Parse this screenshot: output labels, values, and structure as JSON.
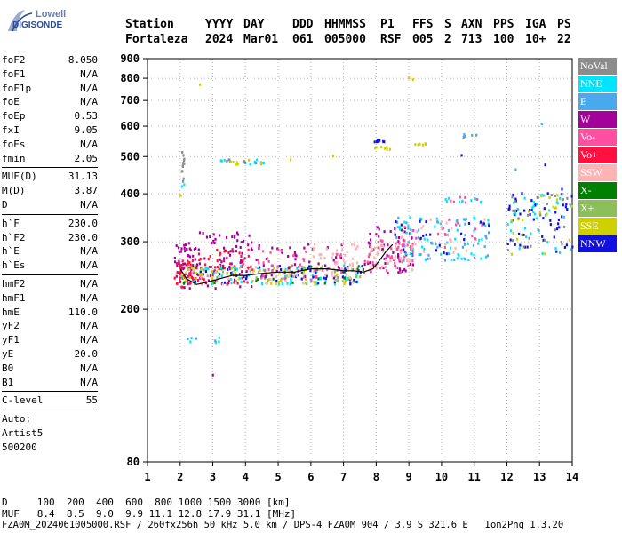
{
  "logo": {
    "line1": "Lowell",
    "line2": "DIGISONDE"
  },
  "header": {
    "columns": [
      {
        "name": "Station",
        "value": "Fortaleza"
      },
      {
        "name": "YYYY",
        "value": "2024"
      },
      {
        "name": "DAY",
        "value": "Mar01"
      },
      {
        "name": "DDD",
        "value": "061"
      },
      {
        "name": "HHMMSS",
        "value": "005000"
      },
      {
        "name": "P1",
        "value": "RSF"
      },
      {
        "name": "FFS",
        "value": "005"
      },
      {
        "name": "S",
        "value": "2"
      },
      {
        "name": "AXN",
        "value": "713"
      },
      {
        "name": "PPS",
        "value": "100"
      },
      {
        "name": "IGA",
        "value": "10+"
      },
      {
        "name": "PS",
        "value": "22"
      }
    ]
  },
  "params": {
    "group1": [
      {
        "name": "foF2",
        "value": "8.050"
      },
      {
        "name": "foF1",
        "value": "N/A"
      },
      {
        "name": "foF1p",
        "value": "N/A"
      },
      {
        "name": "foE",
        "value": "N/A"
      },
      {
        "name": "foEp",
        "value": "0.53"
      },
      {
        "name": "fxI",
        "value": "9.05"
      },
      {
        "name": "foEs",
        "value": "N/A"
      },
      {
        "name": "fmin",
        "value": "2.05"
      }
    ],
    "group2": [
      {
        "name": "MUF(D)",
        "value": "31.13"
      },
      {
        "name": "M(D)",
        "value": "3.87"
      },
      {
        "name": "D",
        "value": "N/A"
      }
    ],
    "group3": [
      {
        "name": "h`F",
        "value": "230.0"
      },
      {
        "name": "h`F2",
        "value": "230.0"
      },
      {
        "name": "h`E",
        "value": "N/A"
      },
      {
        "name": "h`Es",
        "value": "N/A"
      }
    ],
    "group4": [
      {
        "name": "hmF2",
        "value": "N/A"
      },
      {
        "name": "hmF1",
        "value": "N/A"
      },
      {
        "name": "hmE",
        "value": "110.0"
      },
      {
        "name": "yF2",
        "value": "N/A"
      },
      {
        "name": "yF1",
        "value": "N/A"
      },
      {
        "name": "yE",
        "value": "20.0"
      },
      {
        "name": "B0",
        "value": "N/A"
      },
      {
        "name": "B1",
        "value": "N/A"
      }
    ],
    "clevel": {
      "name": "C-level",
      "value": "55"
    },
    "auto": {
      "line1": "Auto:",
      "line2": "Artist5",
      "line3": "500200"
    }
  },
  "legend": [
    {
      "label": "NoVal",
      "color": "#8c8c8c"
    },
    {
      "label": "NNE",
      "color": "#00e5ff"
    },
    {
      "label": "E",
      "color": "#4aa8ee"
    },
    {
      "label": "W",
      "color": "#a4009a"
    },
    {
      "label": "Vo-",
      "color": "#ff4fa0"
    },
    {
      "label": "Vo+",
      "color": "#ff1040"
    },
    {
      "label": "SSW",
      "color": "#ffb4b4"
    },
    {
      "label": "X-",
      "color": "#008000"
    },
    {
      "label": "X+",
      "color": "#8cbf5a"
    },
    {
      "label": "SSE",
      "color": "#d0d000"
    },
    {
      "label": "NNW",
      "color": "#1010e0"
    }
  ],
  "bottom": {
    "line1": "D     100  200  400  600  800 1000 1500 3000 [km]",
    "line2": "MUF   8.4  8.5  9.0  9.9 11.1 12.8 17.9 31.1 [MHz]",
    "line3": "FZA0M_2024061005000.RSF / 260fx256h 50 kHz 5.0 km / DPS-4 FZA0M 904 / 3.9 S 321.6 E   Ion2Png 1.3.20"
  },
  "chart_data": {
    "type": "scatter",
    "xlim": [
      1,
      14
    ],
    "ylim": [
      80,
      900
    ],
    "y_scale": "log",
    "x_ticks": [
      1,
      2,
      3,
      4,
      5,
      6,
      7,
      8,
      9,
      10,
      11,
      12,
      13,
      14
    ],
    "y_ticks": [
      80,
      200,
      300,
      400,
      500,
      600,
      700,
      800,
      900
    ],
    "grid": true,
    "trace": {
      "x": [
        2.0,
        2.2,
        2.5,
        2.8,
        3.2,
        3.6,
        4.0,
        4.5,
        5.0,
        5.5,
        6.0,
        6.5,
        7.0,
        7.3,
        7.6,
        7.9,
        8.1,
        8.3,
        8.5
      ],
      "y": [
        255,
        240,
        232,
        235,
        240,
        245,
        245,
        248,
        250,
        250,
        255,
        255,
        252,
        252,
        250,
        255,
        268,
        283,
        295
      ]
    },
    "clusters": [
      {
        "x": [
          1.8,
          2.5
        ],
        "y": [
          228,
          300
        ],
        "color": "#a4009a",
        "n": 55
      },
      {
        "x": [
          1.8,
          2.5
        ],
        "y": [
          230,
          270
        ],
        "color": "#ff1040",
        "n": 40
      },
      {
        "x": [
          2.5,
          4.2
        ],
        "y": [
          228,
          320
        ],
        "color": "#a4009a",
        "n": 70
      },
      {
        "x": [
          2.5,
          4.2
        ],
        "y": [
          232,
          290
        ],
        "color": "#ff1040",
        "n": 55
      },
      {
        "x": [
          2.0,
          7.6
        ],
        "y": [
          234,
          262
        ],
        "color": "#00e5ff",
        "n": 70
      },
      {
        "x": [
          2.0,
          7.6
        ],
        "y": [
          234,
          262
        ],
        "color": "#1010e0",
        "n": 55
      },
      {
        "x": [
          2.0,
          7.6
        ],
        "y": [
          234,
          262
        ],
        "color": "#d0d000",
        "n": 55
      },
      {
        "x": [
          2.0,
          7.6
        ],
        "y": [
          234,
          262
        ],
        "color": "#8cbf5a",
        "n": 40
      },
      {
        "x": [
          2.0,
          7.6
        ],
        "y": [
          234,
          262
        ],
        "color": "#008000",
        "n": 25
      },
      {
        "x": [
          2.0,
          7.6
        ],
        "y": [
          234,
          262
        ],
        "color": "#ffb4b4",
        "n": 45
      },
      {
        "x": [
          4.3,
          7.0
        ],
        "y": [
          240,
          300
        ],
        "color": "#a4009a",
        "n": 45
      },
      {
        "x": [
          4.3,
          7.0
        ],
        "y": [
          240,
          290
        ],
        "color": "#ff4fa0",
        "n": 40
      },
      {
        "x": [
          6.0,
          7.5
        ],
        "y": [
          255,
          300
        ],
        "color": "#ffb4b4",
        "n": 40
      },
      {
        "x": [
          7.6,
          9.1
        ],
        "y": [
          250,
          330
        ],
        "color": "#a4009a",
        "n": 60
      },
      {
        "x": [
          7.6,
          9.1
        ],
        "y": [
          250,
          310
        ],
        "color": "#ff4fa0",
        "n": 45
      },
      {
        "x": [
          7.6,
          9.1
        ],
        "y": [
          255,
          300
        ],
        "color": "#ffb4b4",
        "n": 35
      },
      {
        "x": [
          8.5,
          11.5
        ],
        "y": [
          270,
          350
        ],
        "color": "#00e5ff",
        "n": 55
      },
      {
        "x": [
          8.5,
          11.5
        ],
        "y": [
          270,
          350
        ],
        "color": "#4aa8ee",
        "n": 45
      },
      {
        "x": [
          8.5,
          11.5
        ],
        "y": [
          270,
          350
        ],
        "color": "#ffb4b4",
        "n": 30
      },
      {
        "x": [
          8.5,
          11.5
        ],
        "y": [
          270,
          350
        ],
        "color": "#ff4fa0",
        "n": 20
      },
      {
        "x": [
          8.5,
          11.5
        ],
        "y": [
          280,
          350
        ],
        "color": "#1010e0",
        "n": 20
      },
      {
        "x": [
          10.0,
          11.2
        ],
        "y": [
          380,
          395
        ],
        "color": "#00e5ff",
        "n": 10
      },
      {
        "x": [
          10.0,
          11.2
        ],
        "y": [
          380,
          395
        ],
        "color": "#ff4fa0",
        "n": 6
      },
      {
        "x": [
          12.0,
          14.0
        ],
        "y": [
          280,
          420
        ],
        "color": "#1010e0",
        "n": 55
      },
      {
        "x": [
          12.0,
          14.0
        ],
        "y": [
          280,
          400
        ],
        "color": "#00e5ff",
        "n": 35
      },
      {
        "x": [
          12.0,
          14.0
        ],
        "y": [
          280,
          400
        ],
        "color": "#d0d000",
        "n": 20
      },
      {
        "x": [
          12.0,
          14.0
        ],
        "y": [
          280,
          400
        ],
        "color": "#8c8c8c",
        "n": 25
      },
      {
        "x": [
          3.2,
          4.6
        ],
        "y": [
          480,
          495
        ],
        "color": "#00e5ff",
        "n": 12
      },
      {
        "x": [
          3.2,
          4.6
        ],
        "y": [
          480,
          495
        ],
        "color": "#8c8c8c",
        "n": 6
      },
      {
        "x": [
          3.2,
          4.6
        ],
        "y": [
          480,
          495
        ],
        "color": "#d0d000",
        "n": 8
      },
      {
        "x": [
          7.9,
          8.4
        ],
        "y": [
          525,
          535
        ],
        "color": "#d0d000",
        "n": 8
      },
      {
        "x": [
          7.9,
          8.3
        ],
        "y": [
          550,
          560
        ],
        "color": "#1010e0",
        "n": 5
      },
      {
        "x": [
          8.9,
          9.5
        ],
        "y": [
          540,
          545
        ],
        "color": "#d0d000",
        "n": 6
      },
      {
        "x": [
          10.6,
          11.1
        ],
        "y": [
          565,
          575
        ],
        "color": "#4aa8ee",
        "n": 5
      },
      {
        "x": [
          2.0,
          2.1
        ],
        "y": [
          430,
          520
        ],
        "color": "#8c8c8c",
        "n": 12
      },
      {
        "x": [
          1.95,
          2.05
        ],
        "y": [
          395,
          400
        ],
        "color": "#d0d000",
        "n": 2
      },
      {
        "x": [
          2.0,
          2.1
        ],
        "y": [
          420,
          430
        ],
        "color": "#00e5ff",
        "n": 2
      },
      {
        "x": [
          8.9,
          9.1
        ],
        "y": [
          800,
          810
        ],
        "color": "#d0d000",
        "n": 2
      },
      {
        "x": [
          2.55,
          2.65
        ],
        "y": [
          775,
          780
        ],
        "color": "#d0d000",
        "n": 1
      },
      {
        "x": [
          2.2,
          3.2
        ],
        "y": [
          165,
          170
        ],
        "color": "#00e5ff",
        "n": 5
      },
      {
        "x": [
          2.2,
          3.2
        ],
        "y": [
          165,
          170
        ],
        "color": "#4aa8ee",
        "n": 3
      },
      {
        "x": [
          2.95,
          3.05
        ],
        "y": [
          132,
          136
        ],
        "color": "#a4009a",
        "n": 1
      },
      {
        "x": [
          12.9,
          13.1
        ],
        "y": [
          610,
          620
        ],
        "color": "#4aa8ee",
        "n": 1
      },
      {
        "x": [
          12.2,
          12.5
        ],
        "y": [
          465,
          470
        ],
        "color": "#4aa8ee",
        "n": 1
      },
      {
        "x": [
          13.1,
          13.2
        ],
        "y": [
          475,
          480
        ],
        "color": "#1010e0",
        "n": 1
      },
      {
        "x": [
          10.4,
          10.6
        ],
        "y": [
          505,
          510
        ],
        "color": "#1010e0",
        "n": 1
      },
      {
        "x": [
          7.9,
          8.1
        ],
        "y": [
          550,
          555
        ],
        "color": "#1010e0",
        "n": 2
      },
      {
        "x": [
          5.3,
          5.4
        ],
        "y": [
          490,
          495
        ],
        "color": "#d0d000",
        "n": 1
      },
      {
        "x": [
          6.6,
          6.7
        ],
        "y": [
          505,
          510
        ],
        "color": "#d0d000",
        "n": 1
      }
    ]
  }
}
